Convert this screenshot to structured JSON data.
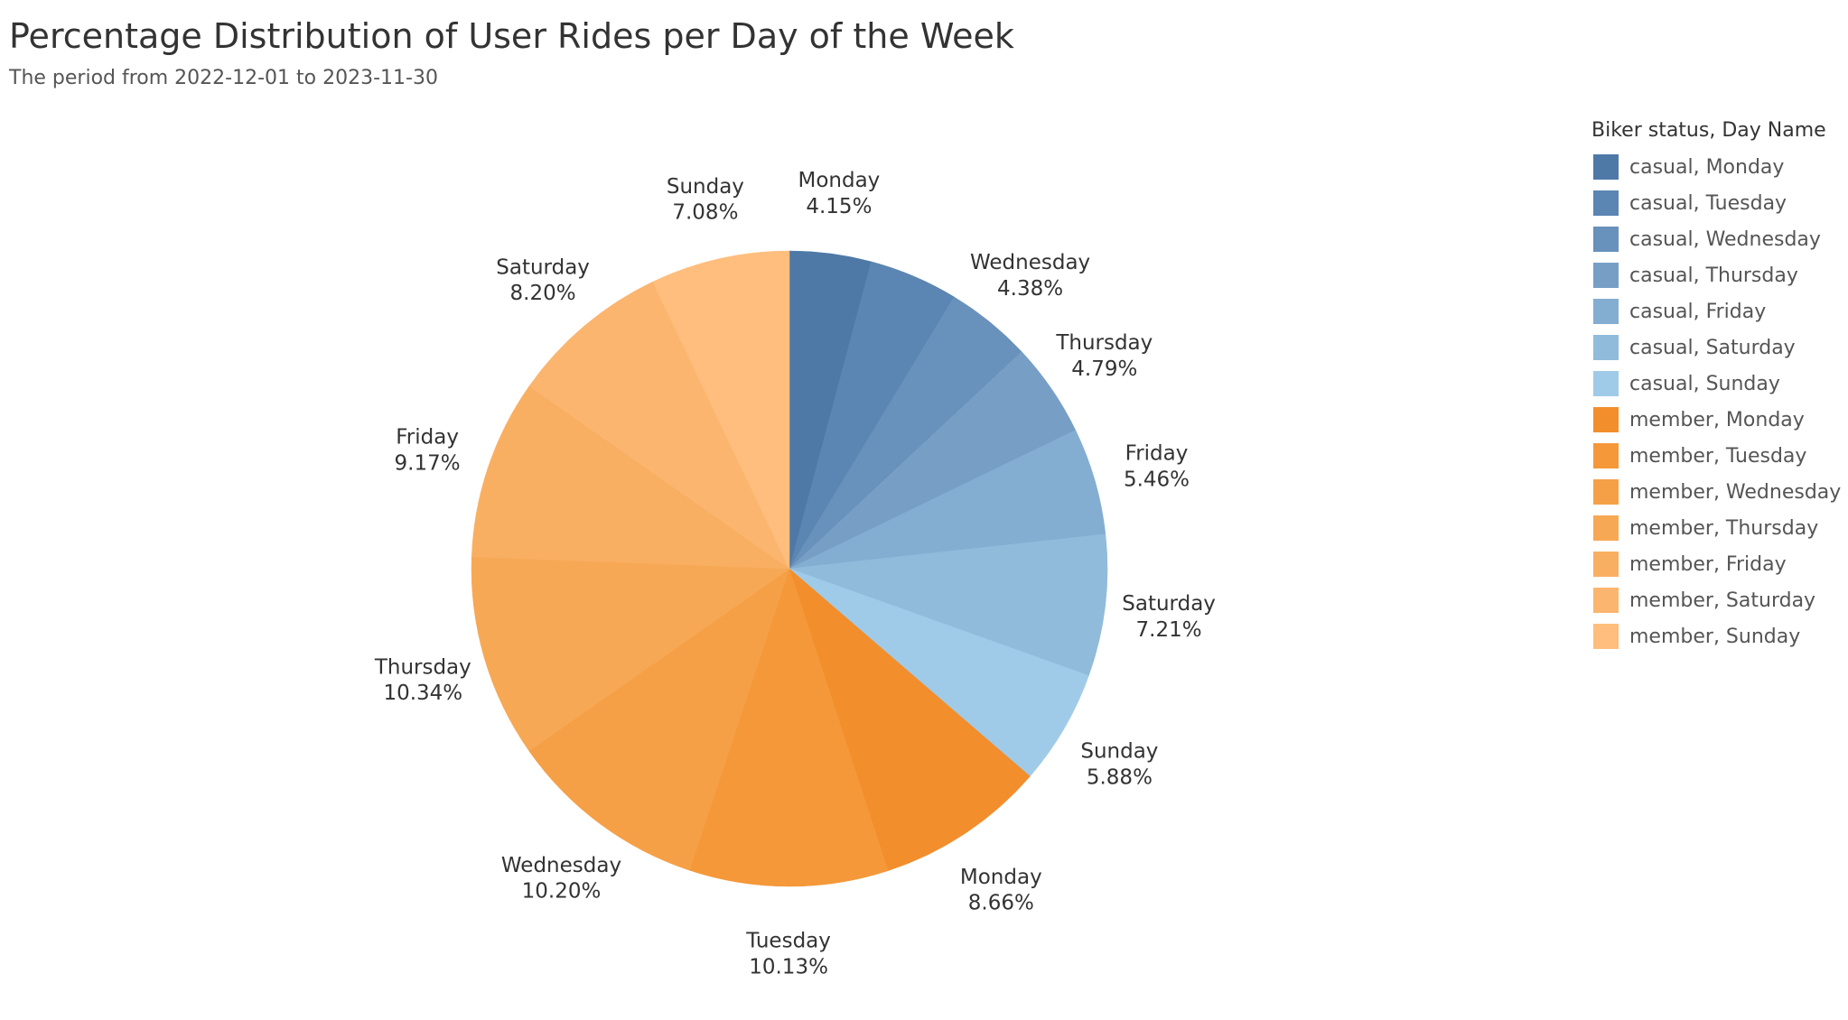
{
  "title": "Percentage Distribution of User Rides per Day of the Week",
  "subtitle": "The period from 2022-12-01 to 2023-11-30",
  "chart_data": {
    "type": "pie",
    "title": "Percentage Distribution of User Rides per Day of the Week",
    "subtitle": "The period from 2022-12-01 to 2023-11-30",
    "legend_title": "Biker status, Day Name",
    "legend_position": "right",
    "slices": [
      {
        "legend": "casual, Monday",
        "day": "Monday",
        "value": 4.15,
        "label": "4.15%",
        "color": "#4e79a7"
      },
      {
        "legend": "casual, Tuesday",
        "day": "Tuesday",
        "value": 4.53,
        "label": "",
        "color": "#5b85b2"
      },
      {
        "legend": "casual, Wednesday",
        "day": "Wednesday",
        "value": 4.38,
        "label": "4.38%",
        "color": "#6891bb"
      },
      {
        "legend": "casual, Thursday",
        "day": "Thursday",
        "value": 4.79,
        "label": "4.79%",
        "color": "#779fc6"
      },
      {
        "legend": "casual, Friday",
        "day": "Friday",
        "value": 5.46,
        "label": "5.46%",
        "color": "#84add2"
      },
      {
        "legend": "casual, Saturday",
        "day": "Saturday",
        "value": 7.21,
        "label": "7.21%",
        "color": "#91bbdb"
      },
      {
        "legend": "casual, Sunday",
        "day": "Sunday",
        "value": 5.88,
        "label": "5.88%",
        "color": "#a0cbe8"
      },
      {
        "legend": "member, Monday",
        "day": "Monday",
        "value": 8.66,
        "label": "8.66%",
        "color": "#f28e2b"
      },
      {
        "legend": "member, Tuesday",
        "day": "Tuesday",
        "value": 10.13,
        "label": "10.13%",
        "color": "#f49839"
      },
      {
        "legend": "member, Wednesday",
        "day": "Wednesday",
        "value": 10.2,
        "label": "10.20%",
        "color": "#f5a047"
      },
      {
        "legend": "member, Thursday",
        "day": "Thursday",
        "value": 10.34,
        "label": "10.34%",
        "color": "#f7a855"
      },
      {
        "legend": "member, Friday",
        "day": "Friday",
        "value": 9.17,
        "label": "9.17%",
        "color": "#f9af62"
      },
      {
        "legend": "member, Saturday",
        "day": "Saturday",
        "value": 8.2,
        "label": "8.20%",
        "color": "#fbb56f"
      },
      {
        "legend": "member, Sunday",
        "day": "Sunday",
        "value": 7.08,
        "label": "7.08%",
        "color": "#ffbe7d"
      }
    ]
  }
}
